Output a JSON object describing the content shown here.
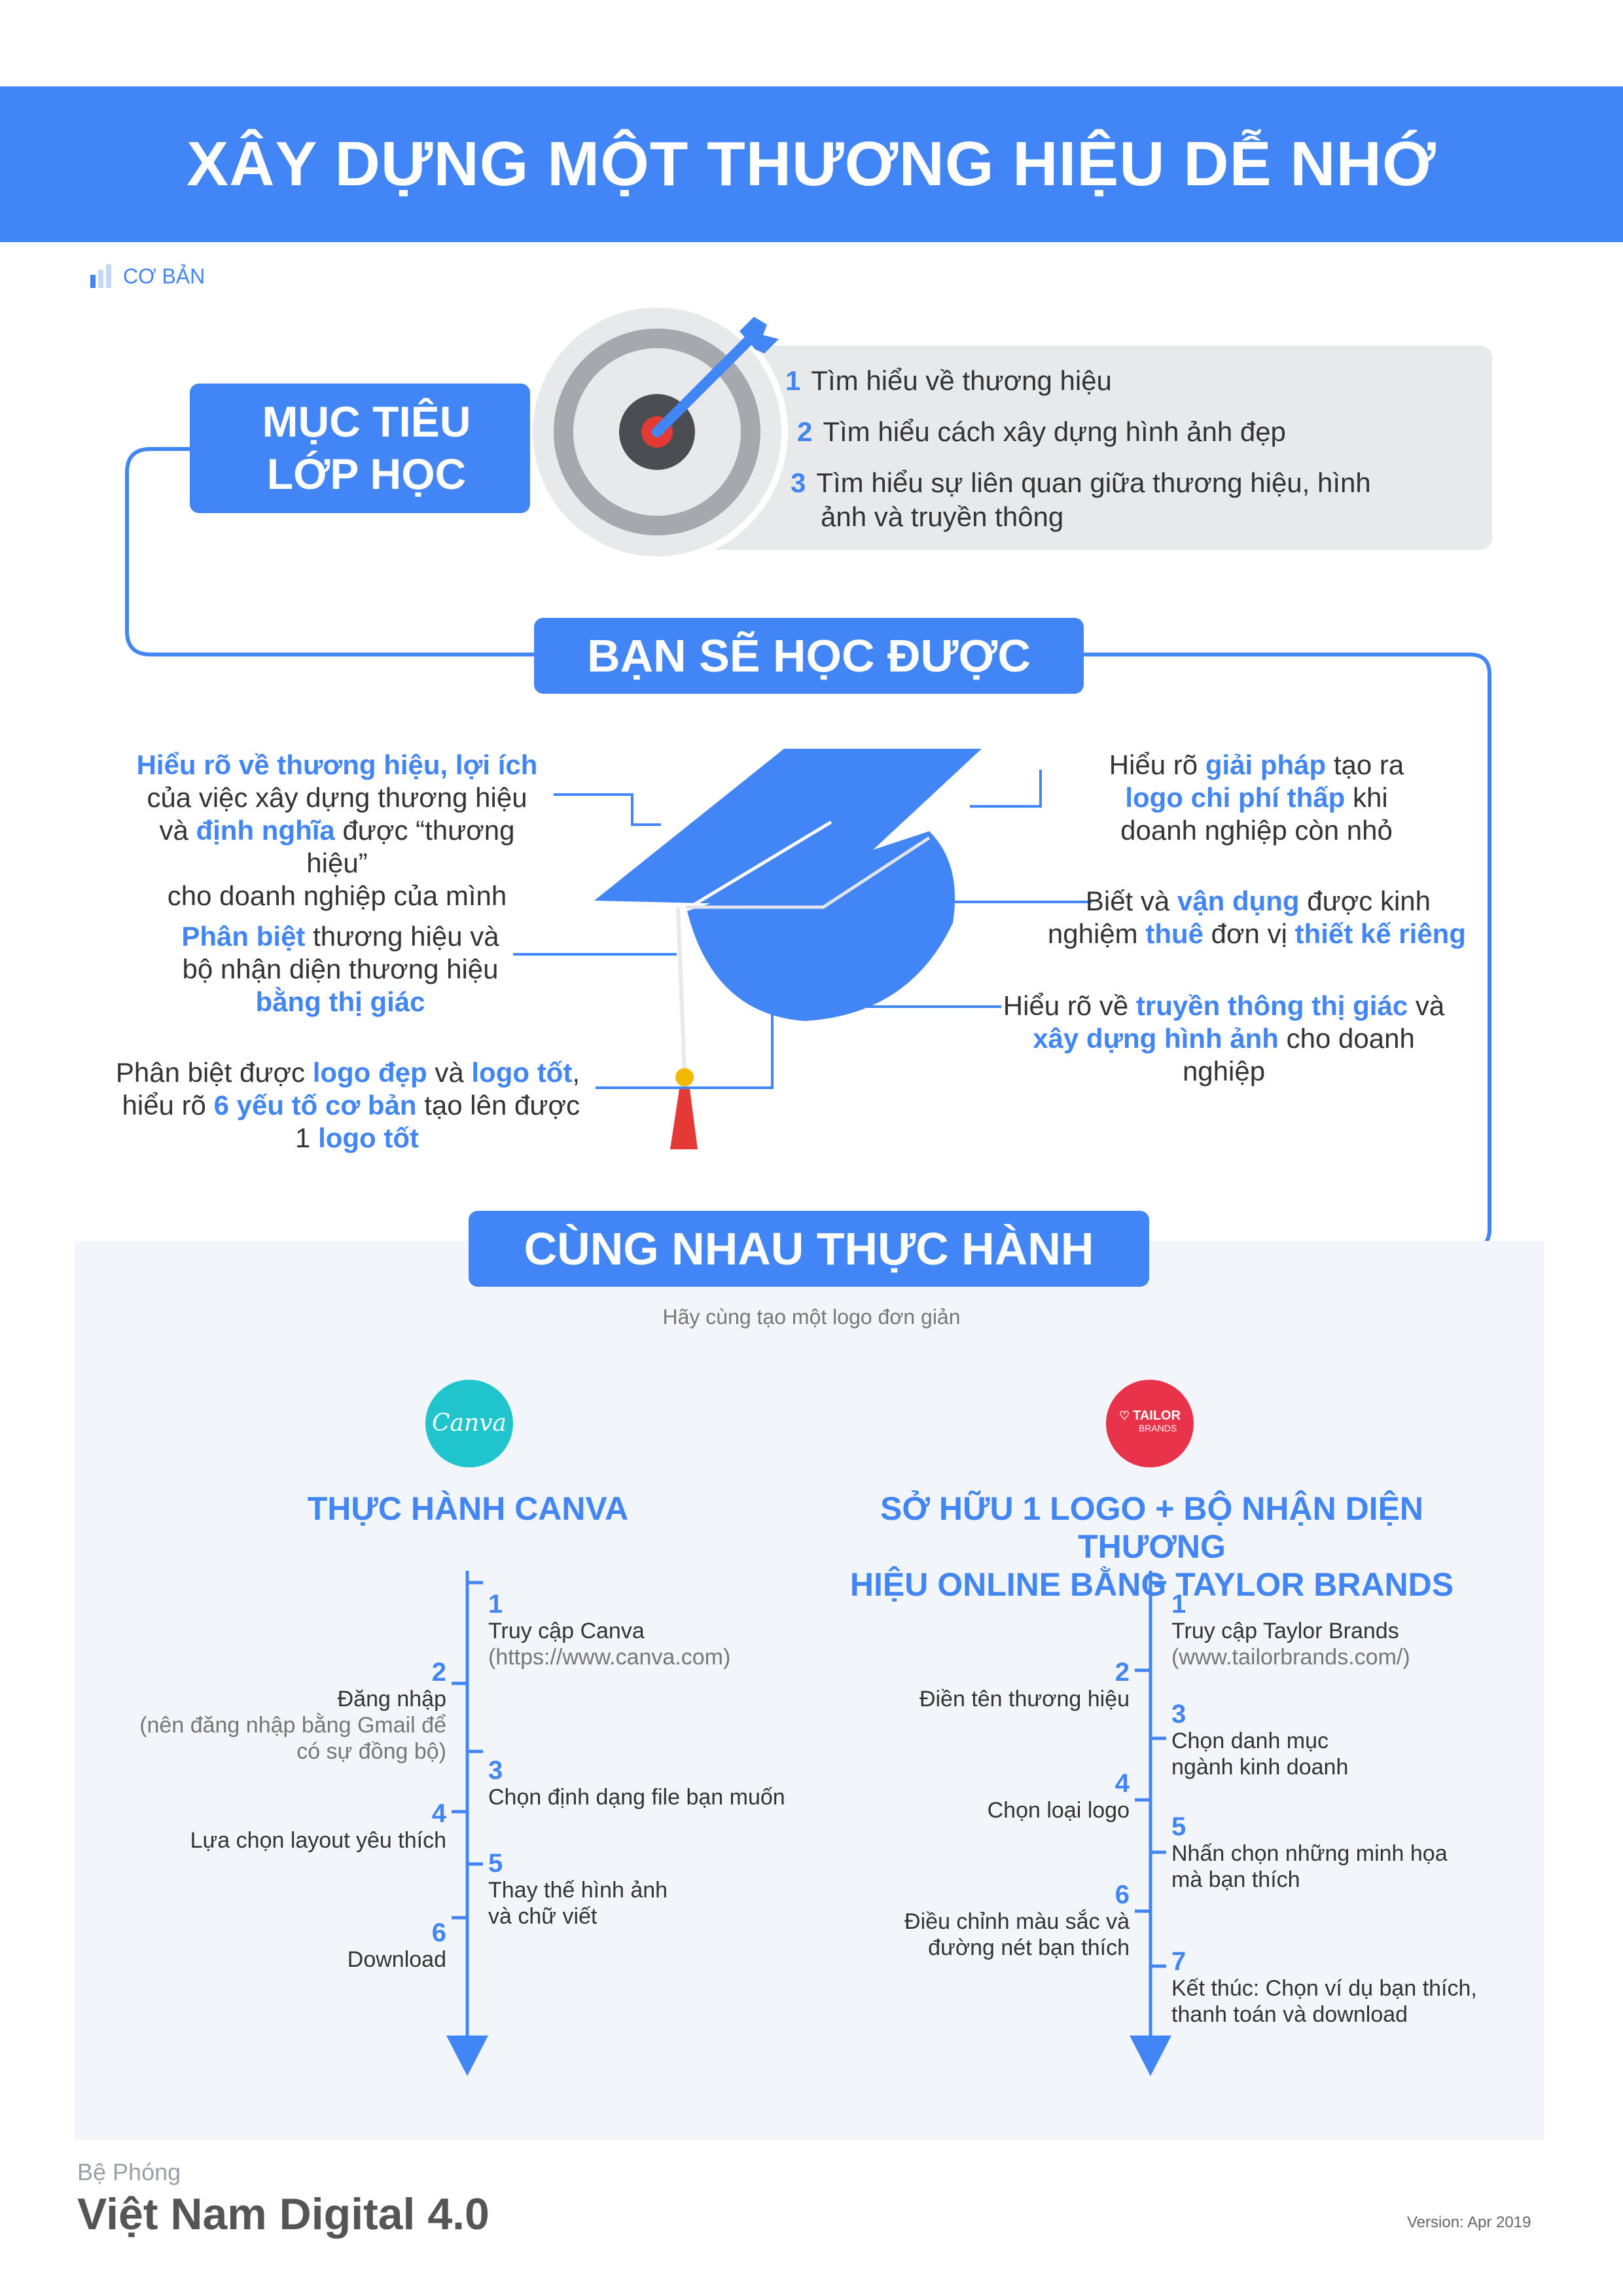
{
  "header": {
    "title": "XÂY DỰNG MỘT THƯƠNG HIỆU DỄ NHỚ"
  },
  "level": {
    "label": "CƠ BẢN"
  },
  "colors": {
    "primary": "#4285f4",
    "panel": "#e8e9eb",
    "practice_bg": "#f2f6fa",
    "canva_teal": "#20c4cb",
    "tailor_red": "#e8334a",
    "tassel_red": "#e53935",
    "tassel_gold": "#f5b800"
  },
  "objectives": {
    "heading_line1": "MỤC TIÊU",
    "heading_line2": "LỚP HỌC",
    "items": [
      {
        "num": "1",
        "text": "Tìm hiểu về thương hiệu"
      },
      {
        "num": "2",
        "text": "Tìm hiểu cách xây dựng hình ảnh đẹp"
      },
      {
        "num": "3",
        "text_line1": "Tìm hiểu sự liên quan giữa thương hiệu, hình",
        "text_line2": "ảnh và truyền thông"
      }
    ]
  },
  "learn": {
    "heading": "BẠN SẼ HỌC ĐƯỢC",
    "left1": {
      "hl1": "Hiểu rõ về thương hiệu, lợi ích",
      "line2": "của việc xây dựng thương hiệu",
      "pre3": "và ",
      "hl3": "định nghĩa",
      "post3": " được “thương hiệu”",
      "line4": "cho doanh nghiệp của mình"
    },
    "left2": {
      "hl1": "Phân biệt",
      "post1": " thương hiệu và",
      "line2": "bộ nhận diện thương hiệu",
      "hl3": "bằng thị giác"
    },
    "left3": {
      "pre1": "Phân biệt được ",
      "hl1a": "logo đẹp",
      "mid1": " và ",
      "hl1b": "logo tốt",
      "post1": ",",
      "pre2": "hiểu rõ ",
      "hl2": "6 yếu tố cơ bản",
      "post2": " tạo lên được",
      "pre3": "1 ",
      "hl3": "logo tốt"
    },
    "right1": {
      "pre1": "Hiểu rõ ",
      "hl1": "giải pháp",
      "post1": " tạo ra",
      "hl2": "logo chi phí thấp",
      "post2": " khi",
      "line3": "doanh nghiệp còn nhỏ"
    },
    "right2": {
      "pre1": "Biết và ",
      "hl1": "vận dụng",
      "post1": " được kinh",
      "pre2": "nghiệm ",
      "hl2a": "thuê",
      "mid2": " đơn vị ",
      "hl2b": "thiết kế riêng"
    },
    "right3": {
      "pre1": "Hiểu rõ về ",
      "hl1": "truyền thông thị giác",
      "post1": " và",
      "hl2": "xây dựng hình ảnh",
      "post2": " cho doanh nghiệp"
    }
  },
  "practice": {
    "heading": "CÙNG NHAU THỰC HÀNH",
    "subtitle": "Hãy cùng tạo một logo đơn giản",
    "canva": {
      "logo_text": "Canva",
      "title": "THỰC HÀNH CANVA",
      "steps": [
        {
          "num": "1",
          "line1": "Truy cập Canva",
          "sub": "(https://www.canva.com)"
        },
        {
          "num": "2",
          "line1": "Đăng nhập",
          "sub1": "(nên đăng nhập bằng Gmail để",
          "sub2": "có sự đồng bộ)"
        },
        {
          "num": "3",
          "line1": "Chọn định dạng file bạn muốn"
        },
        {
          "num": "4",
          "line1": "Lựa chọn layout yêu thích"
        },
        {
          "num": "5",
          "line1": "Thay thế hình ảnh",
          "line2": "và chữ viết"
        },
        {
          "num": "6",
          "line1": "Download"
        }
      ]
    },
    "tailor": {
      "logo_line1": "TAILOR",
      "logo_line2": "BRANDS",
      "title_line1": "SỞ HỮU 1 LOGO + BỘ NHẬN DIỆN THƯƠNG",
      "title_line2": "HIỆU ONLINE BẰNG TAYLOR BRANDS",
      "steps": [
        {
          "num": "1",
          "line1": "Truy cập Taylor Brands",
          "sub": "(www.tailorbrands.com/)"
        },
        {
          "num": "2",
          "line1": "Điền tên thương hiệu"
        },
        {
          "num": "3",
          "line1": "Chọn danh mục",
          "line2": "ngành kinh doanh"
        },
        {
          "num": "4",
          "line1": "Chọn loại logo"
        },
        {
          "num": "5",
          "line1": "Nhấn chọn những minh họa",
          "line2": "mà bạn thích"
        },
        {
          "num": "6",
          "line1": "Điều chỉnh màu sắc và",
          "line2": "đường nét bạn thích"
        },
        {
          "num": "7",
          "line1": "Kết thúc: Chọn ví dụ bạn thích,",
          "line2": "thanh toán và download"
        }
      ]
    }
  },
  "footer": {
    "brand_small": "Bệ Phóng",
    "brand_big": "Việt Nam Digital 4.0",
    "version": "Version: Apr 2019"
  }
}
